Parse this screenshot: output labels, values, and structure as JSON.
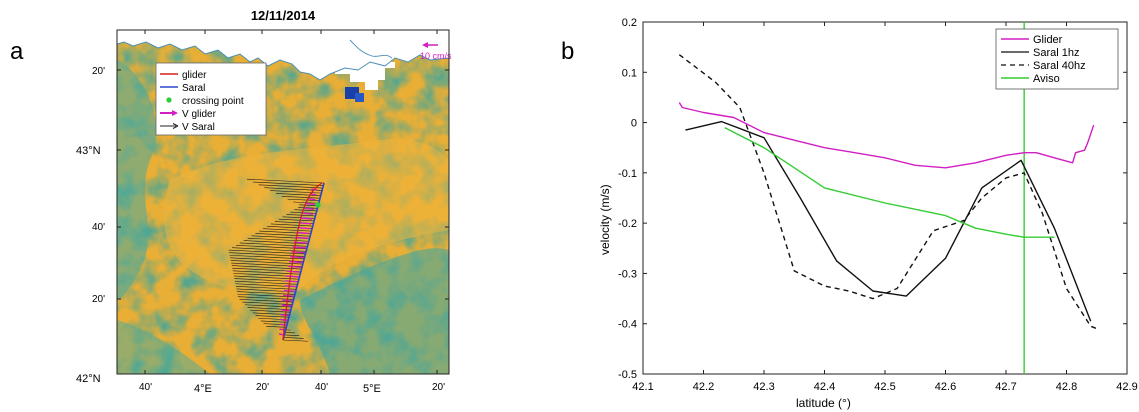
{
  "panels": {
    "a": "a",
    "b": "b"
  },
  "map": {
    "title": "12/11/2014",
    "scale_label": "10 cm/s",
    "legend": [
      {
        "label": "glider",
        "color": "#d42020",
        "kind": "line"
      },
      {
        "label": "Saral",
        "color": "#2c45c8",
        "kind": "line"
      },
      {
        "label": "crossing point",
        "color": "#2ccc3a",
        "kind": "dot"
      },
      {
        "label": "V glider",
        "color": "#d21fc3",
        "kind": "arrow"
      },
      {
        "label": "V Saral",
        "color": "#222222",
        "kind": "arrow"
      }
    ],
    "lat_ticks": [
      "20'",
      "43°N",
      "40'",
      "20'",
      "42°N"
    ],
    "lon_ticks": [
      "40'",
      "4°E",
      "20'",
      "40'",
      "5°E",
      "20'"
    ],
    "colors": {
      "sea": "#e8ae36",
      "eddy": "#3ea59d",
      "land": "#ffffff",
      "coast": "#4a8fb5"
    }
  },
  "chart_data": {
    "type": "line",
    "title": "",
    "xlabel": "latitude (°)",
    "ylabel": "velocity (m/s)",
    "xlim": [
      42.1,
      42.9
    ],
    "ylim": [
      -0.5,
      0.2
    ],
    "xticks": [
      "42.1",
      "42.2",
      "42.3",
      "42.4",
      "42.5",
      "42.6",
      "42.7",
      "42.8",
      "42.9"
    ],
    "yticks": [
      "0.2",
      "0.1",
      "0",
      "-0.1",
      "-0.2",
      "-0.3",
      "-0.4",
      "-0.5"
    ],
    "legend_position": "top-right",
    "grid": false,
    "vline_x": 42.73,
    "vline_color": "#33cc33",
    "series": [
      {
        "name": "Glider",
        "color": "#d21fc3",
        "dash": "",
        "x": [
          42.16,
          42.165,
          42.2,
          42.25,
          42.3,
          42.35,
          42.4,
          42.45,
          42.5,
          42.55,
          42.6,
          42.65,
          42.7,
          42.73,
          42.75,
          42.78,
          42.81,
          42.815,
          42.83,
          42.835,
          42.845
        ],
        "y": [
          0.04,
          0.03,
          0.02,
          0.01,
          -0.02,
          -0.035,
          -0.05,
          -0.06,
          -0.07,
          -0.085,
          -0.09,
          -0.08,
          -0.065,
          -0.06,
          -0.06,
          -0.07,
          -0.08,
          -0.06,
          -0.055,
          -0.04,
          -0.005
        ]
      },
      {
        "name": "Saral 1hz",
        "color": "#111111",
        "dash": "",
        "x": [
          42.17,
          42.23,
          42.3,
          42.36,
          42.42,
          42.48,
          42.535,
          42.6,
          42.66,
          42.725,
          42.78,
          42.84
        ],
        "y": [
          -0.015,
          0.002,
          -0.03,
          -0.15,
          -0.275,
          -0.335,
          -0.345,
          -0.27,
          -0.13,
          -0.075,
          -0.21,
          -0.395
        ]
      },
      {
        "name": "Saral 40hz",
        "color": "#111111",
        "dash": "5,4",
        "x": [
          42.16,
          42.22,
          42.26,
          42.3,
          42.35,
          42.4,
          42.44,
          42.48,
          42.52,
          42.58,
          42.63,
          42.66,
          42.7,
          42.73,
          42.76,
          42.8,
          42.84,
          42.85
        ],
        "y": [
          0.135,
          0.08,
          0.03,
          -0.1,
          -0.295,
          -0.325,
          -0.335,
          -0.35,
          -0.33,
          -0.215,
          -0.195,
          -0.15,
          -0.11,
          -0.1,
          -0.18,
          -0.33,
          -0.405,
          -0.41
        ]
      },
      {
        "name": "Aviso",
        "color": "#33cc33",
        "dash": "",
        "x": [
          42.235,
          42.3,
          42.35,
          42.4,
          42.5,
          42.6,
          42.65,
          42.7,
          42.73,
          42.78
        ],
        "y": [
          -0.01,
          -0.05,
          -0.09,
          -0.13,
          -0.16,
          -0.185,
          -0.21,
          -0.222,
          -0.228,
          -0.228
        ]
      }
    ]
  }
}
